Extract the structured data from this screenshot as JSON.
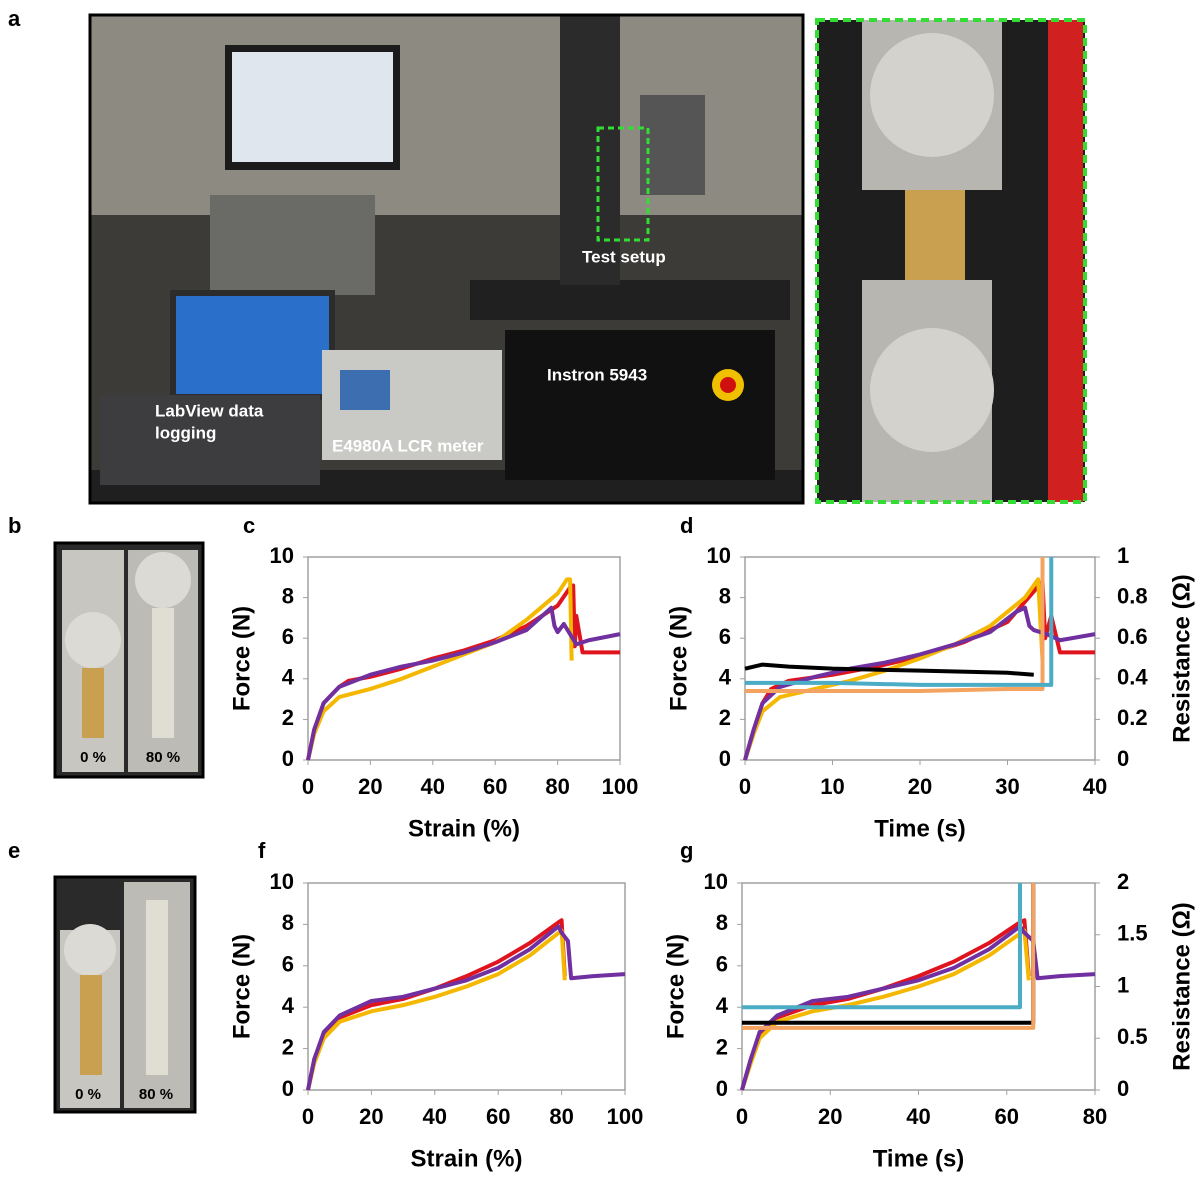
{
  "figure": {
    "panel_labels": [
      "a",
      "b",
      "c",
      "d",
      "e",
      "f",
      "g"
    ],
    "photo_a": {
      "test_setup": "Test setup",
      "labview": [
        "LabView data",
        "logging"
      ],
      "lcr": "E4980A LCR meter",
      "instron": "Instron 5943"
    },
    "photo_b": {
      "left": "0 %",
      "right": "80 %"
    },
    "photo_e": {
      "left": "0 %",
      "right": "80 %"
    }
  },
  "chart_data": [
    {
      "type": "line",
      "xlabel": "Strain (%)",
      "ylabel": "Force (N)",
      "xlim": [
        0,
        100
      ],
      "xticks": [
        0,
        20,
        40,
        60,
        80,
        100
      ],
      "ylim": [
        0,
        10
      ],
      "yticks": [
        0,
        2,
        4,
        6,
        8,
        10
      ],
      "series": [
        {
          "color": "#e0141e",
          "x": [
            0,
            2,
            5,
            10,
            13,
            20,
            30,
            40,
            50,
            60,
            70,
            80,
            84,
            85,
            85.5,
            86,
            88,
            100
          ],
          "values": [
            0,
            1.5,
            2.8,
            3.6,
            3.9,
            4.1,
            4.5,
            5.0,
            5.4,
            5.9,
            6.6,
            7.6,
            8.5,
            8.6,
            5.6,
            7.1,
            5.3,
            5.3
          ]
        },
        {
          "color": "#f5b800",
          "x": [
            0,
            2,
            5,
            10,
            20,
            30,
            40,
            50,
            60,
            70,
            80,
            83,
            84,
            84.5
          ],
          "values": [
            0,
            1.3,
            2.4,
            3.1,
            3.5,
            4.0,
            4.6,
            5.2,
            5.8,
            6.9,
            8.2,
            8.9,
            8.9,
            4.9
          ]
        },
        {
          "color": "#7030a0",
          "x": [
            0,
            2,
            5,
            10,
            20,
            30,
            40,
            50,
            60,
            70,
            78,
            79,
            80,
            82,
            86,
            90,
            100
          ],
          "values": [
            0,
            1.5,
            2.8,
            3.6,
            4.2,
            4.6,
            4.9,
            5.3,
            5.8,
            6.4,
            7.5,
            6.6,
            6.3,
            6.7,
            5.7,
            5.9,
            6.2
          ]
        }
      ]
    },
    {
      "type": "line",
      "xlabel": "Time (s)",
      "ylabel": "Force (N)",
      "y2label": "Resistance (Ω)",
      "xlim": [
        0,
        40
      ],
      "xticks": [
        0,
        10,
        20,
        30,
        40
      ],
      "ylim": [
        0,
        10
      ],
      "yticks": [
        0,
        2,
        4,
        6,
        8,
        10
      ],
      "y2lim": [
        0,
        1
      ],
      "y2ticks": [
        0,
        0.2,
        0.4,
        0.6,
        0.8,
        1
      ],
      "series": [
        {
          "color": "#e0141e",
          "x": [
            0,
            1,
            2,
            3,
            5,
            10,
            15,
            20,
            25,
            30,
            33,
            34,
            34.3,
            35,
            36,
            40
          ],
          "values": [
            0,
            1.5,
            2.8,
            3.5,
            3.9,
            4.2,
            4.6,
            5.1,
            5.8,
            6.8,
            8.3,
            8.8,
            6.0,
            7.1,
            5.3,
            5.3
          ]
        },
        {
          "color": "#f5b800",
          "x": [
            0,
            1,
            2,
            4,
            8,
            12,
            16,
            20,
            24,
            28,
            32,
            33.5,
            34
          ],
          "values": [
            0,
            1.3,
            2.4,
            3.1,
            3.5,
            3.9,
            4.4,
            5.0,
            5.7,
            6.6,
            8.0,
            8.9,
            4.9
          ]
        },
        {
          "color": "#7030a0",
          "x": [
            0,
            1,
            2,
            4,
            8,
            12,
            16,
            20,
            24,
            28,
            31,
            32,
            32.5,
            33,
            34.5,
            36,
            40
          ],
          "values": [
            0,
            1.5,
            2.8,
            3.6,
            4.1,
            4.5,
            4.8,
            5.2,
            5.7,
            6.3,
            7.3,
            7.5,
            6.6,
            6.4,
            6.2,
            5.9,
            6.2
          ]
        },
        {
          "color": "#000000",
          "axis": "y2",
          "x": [
            0,
            2,
            5,
            10,
            20,
            30,
            33
          ],
          "values": [
            0.45,
            0.47,
            0.46,
            0.45,
            0.44,
            0.43,
            0.42
          ]
        },
        {
          "color": "#f4a460",
          "axis": "y2",
          "x": [
            0,
            10,
            20,
            30,
            34,
            34
          ],
          "values": [
            0.34,
            0.34,
            0.34,
            0.35,
            0.35,
            1
          ]
        },
        {
          "color": "#4bacc6",
          "axis": "y2",
          "x": [
            0,
            10,
            20,
            30,
            35,
            35
          ],
          "values": [
            0.38,
            0.38,
            0.37,
            0.37,
            0.37,
            1
          ]
        }
      ]
    },
    {
      "type": "line",
      "xlabel": "Strain (%)",
      "ylabel": "Force (N)",
      "xlim": [
        0,
        100
      ],
      "xticks": [
        0,
        20,
        40,
        60,
        80,
        100
      ],
      "ylim": [
        0,
        10
      ],
      "yticks": [
        0,
        2,
        4,
        6,
        8,
        10
      ],
      "series": [
        {
          "color": "#e0141e",
          "x": [
            0,
            2,
            5,
            10,
            20,
            30,
            40,
            50,
            60,
            70,
            79,
            80,
            81
          ],
          "values": [
            0,
            1.5,
            2.7,
            3.5,
            4.1,
            4.4,
            4.9,
            5.5,
            6.2,
            7.1,
            8.1,
            8.2,
            5.5
          ]
        },
        {
          "color": "#f5b800",
          "x": [
            0,
            2,
            5,
            10,
            20,
            30,
            40,
            50,
            60,
            70,
            80,
            81
          ],
          "values": [
            0,
            1.3,
            2.5,
            3.3,
            3.8,
            4.1,
            4.5,
            5.0,
            5.6,
            6.5,
            7.7,
            5.3
          ]
        },
        {
          "color": "#7030a0",
          "x": [
            0,
            2,
            5,
            10,
            20,
            30,
            40,
            50,
            60,
            70,
            79,
            80,
            82,
            83,
            90,
            100
          ],
          "values": [
            0,
            1.5,
            2.8,
            3.6,
            4.3,
            4.5,
            4.9,
            5.3,
            5.9,
            6.8,
            7.9,
            7.6,
            7.2,
            5.4,
            5.5,
            5.6
          ]
        }
      ]
    },
    {
      "type": "line",
      "xlabel": "Time (s)",
      "ylabel": "Force (N)",
      "y2label": "Resistance (Ω)",
      "xlim": [
        0,
        80
      ],
      "xticks": [
        0,
        20,
        40,
        60,
        80
      ],
      "ylim": [
        0,
        10
      ],
      "yticks": [
        0,
        2,
        4,
        6,
        8,
        10
      ],
      "y2lim": [
        0,
        2
      ],
      "y2ticks": [
        0,
        0.5,
        1,
        1.5,
        2
      ],
      "series": [
        {
          "color": "#e0141e",
          "x": [
            0,
            2,
            4,
            8,
            16,
            24,
            32,
            40,
            48,
            56,
            63,
            64,
            65
          ],
          "values": [
            0,
            1.5,
            2.7,
            3.5,
            4.1,
            4.4,
            4.9,
            5.5,
            6.2,
            7.1,
            8.1,
            8.2,
            5.5
          ]
        },
        {
          "color": "#f5b800",
          "x": [
            0,
            2,
            4,
            8,
            16,
            24,
            32,
            40,
            48,
            56,
            64,
            65
          ],
          "values": [
            0,
            1.3,
            2.5,
            3.3,
            3.8,
            4.1,
            4.5,
            5.0,
            5.6,
            6.5,
            7.7,
            5.3
          ]
        },
        {
          "color": "#7030a0",
          "x": [
            0,
            2,
            4,
            8,
            16,
            24,
            32,
            40,
            48,
            56,
            63,
            64,
            66,
            67,
            72,
            80
          ],
          "values": [
            0,
            1.5,
            2.8,
            3.6,
            4.3,
            4.5,
            4.9,
            5.3,
            5.9,
            6.8,
            7.9,
            7.6,
            7.2,
            5.4,
            5.5,
            5.6
          ]
        },
        {
          "color": "#000000",
          "axis": "y2",
          "x": [
            0,
            20,
            40,
            60,
            66,
            66
          ],
          "values": [
            0.65,
            0.65,
            0.65,
            0.65,
            0.65,
            2
          ]
        },
        {
          "color": "#f4a460",
          "axis": "y2",
          "x": [
            0,
            20,
            40,
            60,
            66,
            66
          ],
          "values": [
            0.6,
            0.6,
            0.6,
            0.6,
            0.6,
            2
          ]
        },
        {
          "color": "#4bacc6",
          "axis": "y2",
          "x": [
            0,
            20,
            40,
            60,
            63,
            63
          ],
          "values": [
            0.8,
            0.8,
            0.8,
            0.8,
            0.8,
            2
          ]
        }
      ]
    }
  ]
}
